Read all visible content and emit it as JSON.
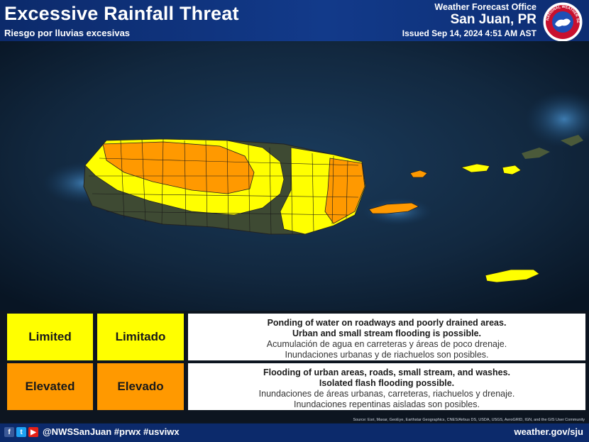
{
  "header": {
    "title": "Excessive Rainfall Threat",
    "subtitle": "Riesgo por lluvias excesivas",
    "office_label": "Weather Forecast Office",
    "office_name": "San Juan, PR",
    "issued": "Issued Sep 14, 2024 4:51 AM AST",
    "logo_text": "NATIONAL WEATHER SERVICE"
  },
  "map": {
    "colors": {
      "ocean": "#0d2f55",
      "land": "#3f4a35",
      "limited": "#ffff00",
      "elevated": "#ff9900",
      "borders": "#1a1a1a"
    }
  },
  "legend": {
    "rows": [
      {
        "level_en": "Limited",
        "level_es": "Limitado",
        "color": "#ffff00",
        "line1_en": "Ponding of water on roadways and poorly drained areas.",
        "line2_en": "Urban and small stream flooding is possible.",
        "line1_es": "Acumulación de agua en carreteras y áreas de poco drenaje.",
        "line2_es": "Inundaciones urbanas y de riachuelos son posibles."
      },
      {
        "level_en": "Elevated",
        "level_es": "Elevado",
        "color": "#ff9900",
        "line1_en": "Flooding of urban areas, roads, small stream, and washes.",
        "line2_en": "Isolated flash flooding possible.",
        "line1_es": "Inundaciones de áreas urbanas, carreteras, riachuelos y drenaje.",
        "line2_es": "Inundaciones repentinas aisladas son posibles."
      }
    ]
  },
  "source": "Source: Esri, Maxar, GeoEye, Earthstar Geographics, CNES/Airbus DS, USDA, USGS, AeroGRID, IGN, and the GIS User Community",
  "footer": {
    "handle": "@NWSSanJuan #prwx #usviwx",
    "website": "weather.gov/sju",
    "icons": [
      "facebook-icon",
      "twitter-icon",
      "youtube-icon"
    ]
  }
}
